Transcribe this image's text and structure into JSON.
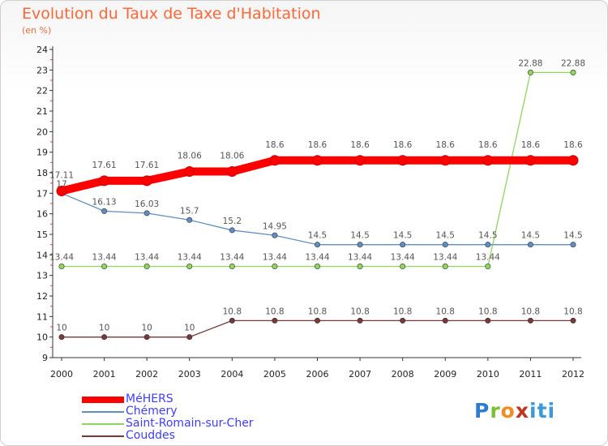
{
  "header": {
    "title": "Evolution du Taux de Taxe d'Habitation",
    "subtitle": "(en %)"
  },
  "logo": {
    "text": "Proxiti"
  },
  "chart_data": {
    "type": "line",
    "title": "Evolution du Taux de Taxe d'Habitation",
    "subtitle": "(en %)",
    "xlabel": "",
    "ylabel": "",
    "x": [
      "2000",
      "2001",
      "2002",
      "2003",
      "2004",
      "2005",
      "2006",
      "2007",
      "2008",
      "2009",
      "2010",
      "2011",
      "2012"
    ],
    "ylim": [
      9,
      24
    ],
    "yticks": [
      "9",
      "10",
      "11",
      "12",
      "13",
      "14",
      "15",
      "16",
      "17",
      "18",
      "19",
      "20",
      "21",
      "22",
      "23",
      "24"
    ],
    "grid": false,
    "legend_position": "bottom-left",
    "series": [
      {
        "name": "MéHERS",
        "color": "#ff0000",
        "values": [
          17.11,
          17.61,
          17.61,
          18.06,
          18.06,
          18.6,
          18.6,
          18.6,
          18.6,
          18.6,
          18.6,
          18.6,
          18.6
        ],
        "labels": [
          "17.11",
          "17.61",
          "17.61",
          "18.06",
          "18.06",
          "18.6",
          "18.6",
          "18.6",
          "18.6",
          "18.6",
          "18.6",
          "18.6",
          "18.6"
        ]
      },
      {
        "name": "Chémery",
        "color": "#5b8fc6",
        "values": [
          17,
          16.13,
          16.03,
          15.7,
          15.2,
          14.95,
          14.5,
          14.5,
          14.5,
          14.5,
          14.5,
          14.5,
          14.5
        ],
        "labels": [
          "17",
          "16.13",
          "16.03",
          "15.7",
          "15.2",
          "14.95",
          "14.5",
          "14.5",
          "14.5",
          "14.5",
          "14.5",
          "14.5",
          "14.5"
        ]
      },
      {
        "name": "Saint-Romain-sur-Cher",
        "color": "#8fd65a",
        "values": [
          13.44,
          13.44,
          13.44,
          13.44,
          13.44,
          13.44,
          13.44,
          13.44,
          13.44,
          13.44,
          13.44,
          22.88,
          22.88
        ],
        "labels": [
          "13.44",
          "13.44",
          "13.44",
          "13.44",
          "13.44",
          "13.44",
          "13.44",
          "13.44",
          "13.44",
          "13.44",
          "13.44",
          "22.88",
          "22.88"
        ]
      },
      {
        "name": "Couddes",
        "color": "#7a3838",
        "values": [
          10,
          10,
          10,
          10,
          10.8,
          10.8,
          10.8,
          10.8,
          10.8,
          10.8,
          10.8,
          10.8,
          10.8
        ],
        "labels": [
          "10",
          "10",
          "10",
          "10",
          "10.8",
          "10.8",
          "10.8",
          "10.8",
          "10.8",
          "10.8",
          "10.8",
          "10.8",
          "10.8"
        ]
      }
    ]
  }
}
